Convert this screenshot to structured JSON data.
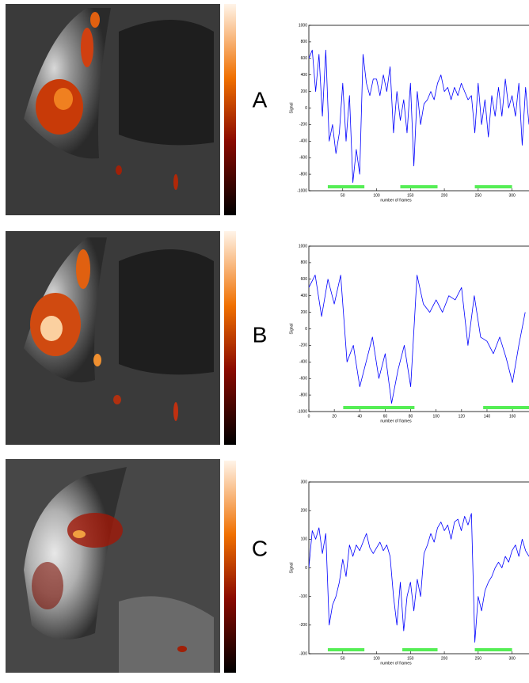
{
  "chart_data": [
    {
      "type": "line",
      "label": "A",
      "x_label": "number of frames",
      "y_label": "Signal",
      "color": "#0000ff",
      "x": [
        0,
        5,
        10,
        15,
        20,
        25,
        30,
        35,
        40,
        45,
        50,
        55,
        60,
        65,
        70,
        75,
        80,
        85,
        90,
        95,
        100,
        105,
        110,
        115,
        120,
        125,
        130,
        135,
        140,
        145,
        150,
        155,
        160,
        165,
        170,
        175,
        180,
        185,
        190,
        195,
        200,
        205,
        210,
        215,
        220,
        225,
        230,
        235,
        240,
        245,
        250,
        255,
        260,
        265,
        270,
        275,
        280,
        285,
        290,
        295,
        300,
        305,
        310,
        315,
        320,
        325
      ],
      "values": [
        600,
        700,
        200,
        650,
        -100,
        700,
        -400,
        -200,
        -550,
        -300,
        300,
        -400,
        150,
        -900,
        -500,
        -800,
        650,
        300,
        150,
        350,
        350,
        150,
        400,
        200,
        500,
        -300,
        200,
        -150,
        100,
        -300,
        300,
        -700,
        200,
        -200,
        50,
        100,
        200,
        100,
        300,
        400,
        200,
        250,
        100,
        250,
        150,
        300,
        200,
        100,
        150,
        -300,
        300,
        -200,
        100,
        -350,
        150,
        -100,
        250,
        -100,
        350,
        0,
        150,
        -100,
        300,
        -450,
        250,
        -200
      ],
      "blocks": [
        [
          28,
          82
        ],
        [
          135,
          190
        ],
        [
          245,
          300
        ]
      ],
      "block_color": "#55ee55",
      "xlim": [
        0,
        325
      ],
      "ylim": [
        -1000,
        1000
      ],
      "xticks": [
        50,
        100,
        150,
        200,
        250,
        300
      ],
      "yticks": [
        -1000,
        -800,
        -600,
        -400,
        -200,
        0,
        200,
        400,
        600,
        800,
        1000
      ]
    },
    {
      "type": "line",
      "label": "B",
      "x_label": "number of frames",
      "y_label": "Signal",
      "color": "#0000ff",
      "x": [
        0,
        5,
        10,
        15,
        20,
        25,
        30,
        35,
        40,
        45,
        50,
        55,
        60,
        65,
        70,
        75,
        80,
        85,
        90,
        95,
        100,
        105,
        110,
        115,
        120,
        125,
        130,
        135,
        140,
        145,
        150,
        155,
        160,
        165,
        170
      ],
      "values": [
        500,
        650,
        150,
        600,
        300,
        650,
        -400,
        -200,
        -700,
        -400,
        -100,
        -600,
        -300,
        -900,
        -500,
        -200,
        -700,
        650,
        300,
        200,
        350,
        200,
        400,
        350,
        500,
        -200,
        400,
        -100,
        -150,
        -300,
        -100,
        -350,
        -650,
        -200,
        200
      ],
      "blocks": [
        [
          27,
          83
        ],
        [
          137,
          180
        ]
      ],
      "block_color": "#55ee55",
      "xlim": [
        0,
        173
      ],
      "ylim": [
        -1000,
        1000
      ],
      "xticks": [
        0,
        20,
        40,
        60,
        80,
        100,
        120,
        140,
        160
      ],
      "yticks": [
        -1000,
        -800,
        -600,
        -400,
        -200,
        0,
        200,
        400,
        600,
        800,
        1000
      ]
    },
    {
      "type": "line",
      "label": "C",
      "x_label": "number of frames",
      "y_label": "Signal",
      "color": "#0000ff",
      "x": [
        0,
        5,
        10,
        15,
        20,
        25,
        30,
        35,
        40,
        45,
        50,
        55,
        60,
        65,
        70,
        75,
        80,
        85,
        90,
        95,
        100,
        105,
        110,
        115,
        120,
        125,
        130,
        135,
        140,
        145,
        150,
        155,
        160,
        165,
        170,
        175,
        180,
        185,
        190,
        195,
        200,
        205,
        210,
        215,
        220,
        225,
        230,
        235,
        240,
        245,
        250,
        255,
        260,
        265,
        270,
        275,
        280,
        285,
        290,
        295,
        300,
        305,
        310,
        315,
        320,
        325
      ],
      "values": [
        0,
        130,
        100,
        140,
        50,
        120,
        -200,
        -130,
        -100,
        -50,
        30,
        -30,
        80,
        40,
        80,
        60,
        90,
        120,
        70,
        50,
        70,
        90,
        60,
        80,
        40,
        -100,
        -200,
        -50,
        -220,
        -100,
        -50,
        -150,
        -40,
        -100,
        50,
        80,
        120,
        90,
        140,
        160,
        130,
        150,
        100,
        160,
        170,
        130,
        180,
        150,
        190,
        -260,
        -100,
        -150,
        -80,
        -50,
        -30,
        0,
        20,
        0,
        40,
        20,
        60,
        80,
        40,
        100,
        60,
        40
      ],
      "blocks": [
        [
          28,
          82
        ],
        [
          138,
          190
        ],
        [
          245,
          300
        ]
      ],
      "block_color": "#55ee55",
      "xlim": [
        0,
        325
      ],
      "ylim": [
        -300,
        300
      ],
      "xticks": [
        50,
        100,
        150,
        200,
        250,
        300
      ],
      "yticks": [
        -300,
        -200,
        -100,
        0,
        100,
        200,
        300
      ]
    }
  ]
}
